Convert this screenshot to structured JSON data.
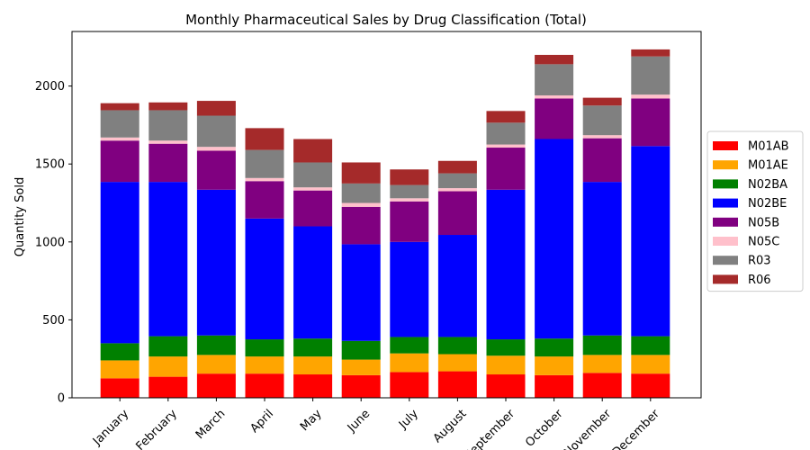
{
  "chart_data": {
    "type": "bar",
    "stacked": true,
    "title": "Monthly Pharmaceutical Sales by Drug Classification (Total)",
    "xlabel": "",
    "ylabel": "Quantity Sold",
    "ylim": [
      0,
      2350
    ],
    "yticks": [
      0,
      500,
      1000,
      1500,
      2000
    ],
    "legend_position": "center-right, outside plot",
    "grid": false,
    "categories": [
      "January",
      "February",
      "March",
      "April",
      "May",
      "June",
      "July",
      "August",
      "September",
      "October",
      "November",
      "December"
    ],
    "series": [
      {
        "name": "M01AB",
        "color": "#ff0000",
        "values": [
          125,
          135,
          155,
          155,
          150,
          145,
          165,
          170,
          150,
          145,
          160,
          155
        ]
      },
      {
        "name": "M01AE",
        "color": "#ffa500",
        "values": [
          115,
          130,
          120,
          110,
          115,
          100,
          120,
          110,
          120,
          120,
          115,
          120
        ]
      },
      {
        "name": "N02BA",
        "color": "#008000",
        "values": [
          110,
          130,
          125,
          110,
          115,
          120,
          105,
          110,
          105,
          115,
          125,
          120
        ]
      },
      {
        "name": "N02BE",
        "color": "#0000ff",
        "values": [
          1035,
          990,
          935,
          775,
          720,
          620,
          610,
          655,
          960,
          1280,
          985,
          1220
        ]
      },
      {
        "name": "N05B",
        "color": "#800080",
        "values": [
          265,
          245,
          250,
          240,
          230,
          240,
          260,
          280,
          270,
          260,
          280,
          305
        ]
      },
      {
        "name": "N05C",
        "color": "#ffc0cb",
        "values": [
          20,
          20,
          25,
          20,
          20,
          25,
          20,
          20,
          20,
          20,
          20,
          25
        ]
      },
      {
        "name": "R03",
        "color": "#808080",
        "values": [
          175,
          195,
          200,
          180,
          160,
          125,
          85,
          95,
          140,
          200,
          190,
          245
        ]
      },
      {
        "name": "R06",
        "color": "#a52a2a",
        "values": [
          45,
          50,
          95,
          140,
          150,
          135,
          100,
          80,
          75,
          60,
          50,
          45
        ]
      }
    ]
  }
}
